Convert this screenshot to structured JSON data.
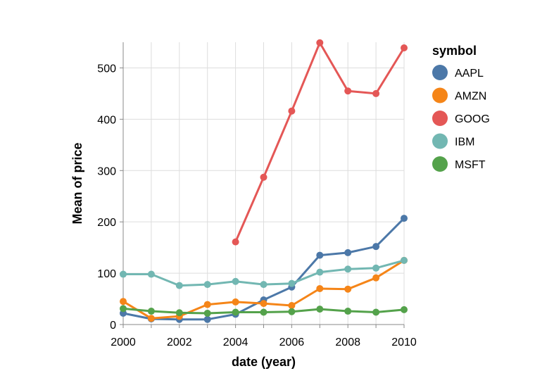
{
  "chart_data": {
    "type": "line",
    "title": "",
    "xlabel": "date (year)",
    "ylabel": "Mean of price",
    "xlim": [
      2000,
      2010
    ],
    "ylim": [
      0,
      550
    ],
    "x_ticks": [
      2000,
      2002,
      2004,
      2006,
      2008,
      2010
    ],
    "y_ticks": [
      0,
      100,
      200,
      300,
      400,
      500
    ],
    "grid": true,
    "legend": {
      "title": "symbol",
      "position": "right"
    },
    "x": [
      2000,
      2001,
      2002,
      2003,
      2004,
      2005,
      2006,
      2007,
      2008,
      2009,
      2010
    ],
    "series": [
      {
        "name": "AAPL",
        "color": "#4c78a8",
        "values": [
          22,
          11,
          10,
          10,
          20,
          48,
          73,
          135,
          140,
          152,
          207
        ]
      },
      {
        "name": "AMZN",
        "color": "#f58518",
        "values": [
          45,
          12,
          16,
          39,
          44,
          41,
          37,
          70,
          69,
          91,
          125
        ]
      },
      {
        "name": "GOOG",
        "color": "#e45756",
        "values": [
          null,
          null,
          null,
          null,
          161,
          287,
          416,
          549,
          455,
          450,
          539
        ]
      },
      {
        "name": "IBM",
        "color": "#72b7b2",
        "values": [
          98,
          98,
          76,
          78,
          84,
          78,
          80,
          102,
          108,
          110,
          125
        ]
      },
      {
        "name": "MSFT",
        "color": "#54a24b",
        "values": [
          31,
          26,
          23,
          22,
          24,
          24,
          25,
          30,
          26,
          24,
          29
        ]
      }
    ]
  }
}
